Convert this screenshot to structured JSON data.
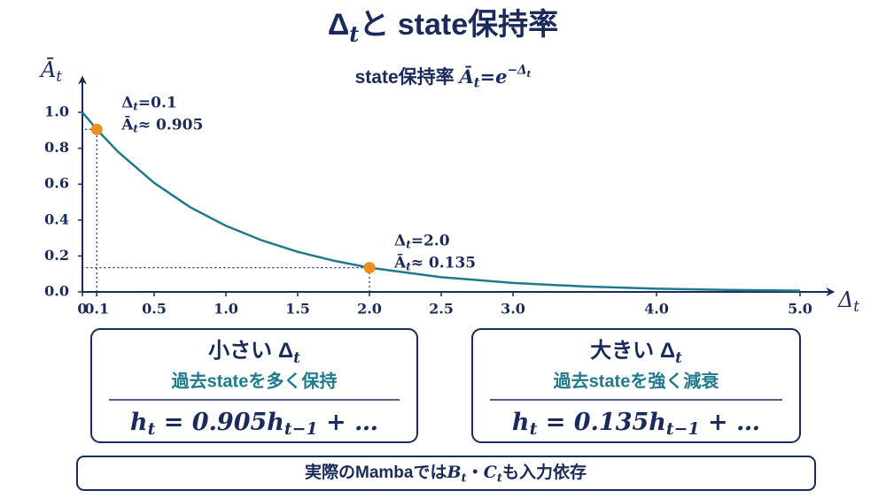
{
  "chart_data": {
    "type": "line",
    "title": [
      {
        "text": "Δ",
        "style": "plain"
      },
      {
        "text": "t",
        "style": "sub"
      },
      {
        "text": "と state保持率",
        "style": "plain"
      }
    ],
    "subtitle": [
      {
        "text": "state保持率 ",
        "style": "plain"
      },
      {
        "text": "Ā",
        "style": "math"
      },
      {
        "text": "t",
        "style": "sub"
      },
      {
        "text": "=e",
        "style": "math"
      },
      {
        "text": "−Δ",
        "style": "sup"
      },
      {
        "text": "t",
        "style": "supsub"
      }
    ],
    "y_label": [
      {
        "text": "Ā",
        "style": "math"
      },
      {
        "text": "t",
        "style": "sub"
      }
    ],
    "x_label": [
      {
        "text": "Δ",
        "style": "math"
      },
      {
        "text": "t",
        "style": "sub"
      }
    ],
    "xlim": [
      0,
      5.2
    ],
    "ylim": [
      0,
      1.17
    ],
    "xticks": [
      0,
      0.1,
      0.5,
      {
        "value": 1,
        "label": "1.0"
      },
      1.5,
      {
        "value": 2,
        "label": "2.0"
      },
      2.5,
      {
        "value": 3,
        "label": "3.0"
      },
      {
        "value": 4,
        "label": "4.0"
      },
      {
        "value": 5,
        "label": "5.0"
      }
    ],
    "yticks": [
      {
        "value": 0,
        "label": "0.0"
      },
      0.2,
      0.4,
      0.6,
      0.8,
      {
        "value": 1,
        "label": "1.0"
      }
    ],
    "series": [
      {
        "color": "#1f7a8c",
        "x": [
          0,
          0.1,
          0.25,
          0.5,
          0.75,
          1,
          1.25,
          1.5,
          1.75,
          2,
          2.5,
          3,
          3.5,
          4,
          4.5,
          5
        ],
        "values": [
          1,
          0.905,
          0.779,
          0.607,
          0.472,
          0.368,
          0.287,
          0.223,
          0.174,
          0.135,
          0.082,
          0.05,
          0.03,
          0.018,
          0.011,
          0.007
        ]
      },
      {
        "color": "#f28c1e",
        "x": [
          0.1,
          2
        ],
        "values": [
          0.905,
          0.135
        ]
      }
    ],
    "annotations": [
      [
        [
          {
            "text": "Δ",
            "style": "plain"
          },
          {
            "text": "t",
            "style": "sub"
          },
          {
            "text": "=0.1",
            "style": "plain"
          }
        ],
        [
          {
            "text": "Ā",
            "style": "plain"
          },
          {
            "text": "t",
            "style": "sub"
          },
          {
            "text": "≈ 0.905",
            "style": "plain"
          }
        ]
      ],
      [
        [
          {
            "text": "Δ",
            "style": "plain"
          },
          {
            "text": "t",
            "style": "sub"
          },
          {
            "text": "=2.0",
            "style": "plain"
          }
        ],
        [
          {
            "text": "Ā",
            "style": "plain"
          },
          {
            "text": "t",
            "style": "sub"
          },
          {
            "text": "≈ 0.135",
            "style": "plain"
          }
        ]
      ]
    ]
  },
  "boxes": [
    {
      "title": [
        {
          "text": "小さい ",
          "style": "plain"
        },
        {
          "text": "Δ",
          "style": "plain"
        },
        {
          "text": "t",
          "style": "sub"
        }
      ],
      "subtitle": "過去stateを多く保持",
      "formula": [
        {
          "text": "h",
          "style": "math"
        },
        {
          "text": "t",
          "style": "sub"
        },
        {
          "text": " = 0.905",
          "style": "math"
        },
        {
          "text": "h",
          "style": "math"
        },
        {
          "text": "t−1",
          "style": "sub"
        },
        {
          "text": " + …",
          "style": "math"
        }
      ]
    },
    {
      "title": [
        {
          "text": "大きい ",
          "style": "plain"
        },
        {
          "text": "Δ",
          "style": "plain"
        },
        {
          "text": "t",
          "style": "sub"
        }
      ],
      "subtitle": "過去stateを強く減衰",
      "formula": [
        {
          "text": "h",
          "style": "math"
        },
        {
          "text": "t",
          "style": "sub"
        },
        {
          "text": " = 0.135",
          "style": "math"
        },
        {
          "text": "h",
          "style": "math"
        },
        {
          "text": "t−1",
          "style": "sub"
        },
        {
          "text": " + …",
          "style": "math"
        }
      ]
    }
  ],
  "footer": [
    {
      "text": "実際のMambaでは",
      "style": "plain"
    },
    {
      "text": "B",
      "style": "math"
    },
    {
      "text": "t",
      "style": "sub"
    },
    {
      "text": "・",
      "style": "plain"
    },
    {
      "text": "C",
      "style": "math"
    },
    {
      "text": "t",
      "style": "sub"
    },
    {
      "text": "も入力依存",
      "style": "plain"
    }
  ]
}
